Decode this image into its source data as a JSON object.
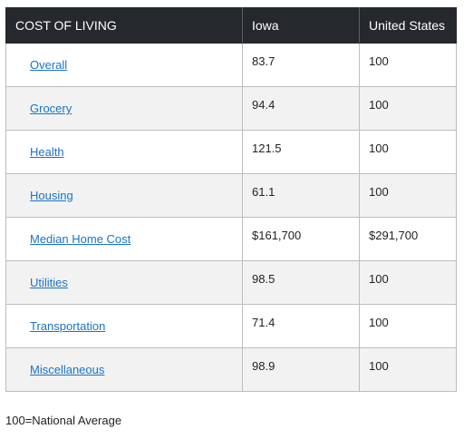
{
  "table": {
    "headers": [
      "COST OF LIVING",
      "Iowa",
      "United States"
    ],
    "rows": [
      {
        "label": "Overall",
        "iowa": "83.7",
        "us": "100"
      },
      {
        "label": "Grocery",
        "iowa": "94.4",
        "us": "100"
      },
      {
        "label": "Health",
        "iowa": "121.5",
        "us": "100"
      },
      {
        "label": "Housing",
        "iowa": "61.1",
        "us": "100"
      },
      {
        "label": "Median Home Cost",
        "iowa": "$161,700",
        "us": "$291,700"
      },
      {
        "label": "Utilities",
        "iowa": "98.5",
        "us": "100"
      },
      {
        "label": "Transportation",
        "iowa": "71.4",
        "us": "100"
      },
      {
        "label": "Miscellaneous",
        "iowa": "98.9",
        "us": "100"
      }
    ]
  },
  "footnote": "100=National Average",
  "colors": {
    "header_bg": "#25282c",
    "link": "#1a73c8",
    "stripe": "#f2f2f2"
  }
}
